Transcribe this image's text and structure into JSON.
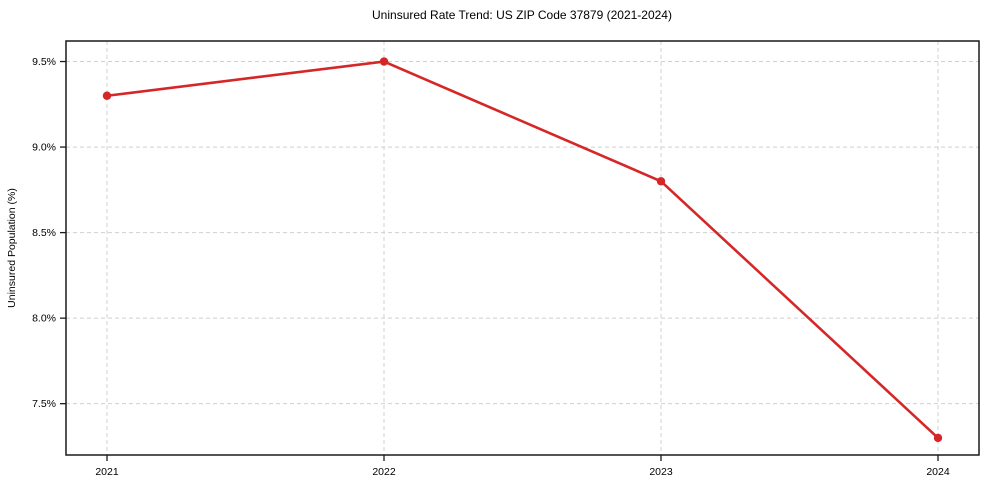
{
  "chart_data": {
    "type": "line",
    "title": "Uninsured Rate Trend: US ZIP Code 37879 (2021-2024)",
    "xlabel": "",
    "ylabel": "Uninsured Population (%)",
    "categories": [
      "2021",
      "2022",
      "2023",
      "2024"
    ],
    "values": [
      9.3,
      9.5,
      8.8,
      7.3
    ],
    "ylim": [
      7.2,
      9.62
    ],
    "yticks": [
      7.5,
      8.0,
      8.5,
      9.0,
      9.5
    ],
    "ytick_labels": [
      "7.5%",
      "8.0%",
      "8.5%",
      "9.0%",
      "9.5%"
    ],
    "grid": true,
    "grid_style": "dashed",
    "grid_color": "#d0d0d0",
    "legend": false,
    "line_color": "#d62728",
    "marker": "circle",
    "spine_color": "#1a1a1a",
    "background_color": "#ffffff"
  }
}
